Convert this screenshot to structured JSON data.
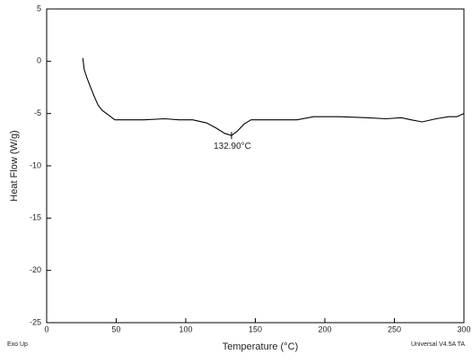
{
  "chart_data": {
    "type": "line",
    "xlabel": "Temperature (°C)",
    "ylabel": "Heat Flow (W/g)",
    "footer_left": "Exo Up",
    "footer_right": "Universal V4.5A TA",
    "x": [
      26,
      27,
      29,
      31,
      34,
      37,
      40,
      44,
      49,
      55,
      70,
      85,
      95,
      105,
      115,
      122,
      128,
      132.9,
      137,
      142,
      147,
      160,
      180,
      192,
      210,
      230,
      244,
      255,
      262,
      270,
      280,
      289,
      295,
      300
    ],
    "series": [
      {
        "name": "Heat Flow",
        "color": "#000000",
        "values": [
          0.3,
          -0.8,
          -1.6,
          -2.3,
          -3.3,
          -4.2,
          -4.7,
          -5.1,
          -5.6,
          -5.6,
          -5.6,
          -5.5,
          -5.6,
          -5.6,
          -5.9,
          -6.4,
          -6.9,
          -7.1,
          -6.7,
          -6.0,
          -5.6,
          -5.6,
          -5.6,
          -5.3,
          -5.3,
          -5.4,
          -5.5,
          -5.4,
          -5.6,
          -5.8,
          -5.5,
          -5.3,
          -5.3,
          -5.0
        ]
      }
    ],
    "annotations": [
      {
        "text": "132.90°C",
        "x": 132.9,
        "y": -7.1
      }
    ],
    "xlim": [
      0,
      300
    ],
    "xticks": [
      0,
      50,
      100,
      150,
      200,
      250,
      300
    ],
    "ylim": [
      -25,
      5
    ],
    "yticks": [
      -25,
      -20,
      -15,
      -10,
      -5,
      0,
      5
    ],
    "grid": false
  }
}
